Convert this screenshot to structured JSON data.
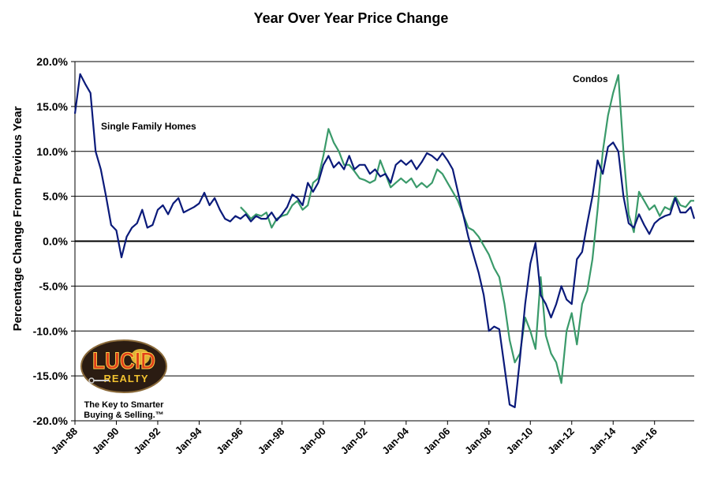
{
  "chart_data": {
    "type": "line",
    "title": "Year Over Year Price Change",
    "ylabel": "Percentage Change From Previous Year",
    "xlabel": "",
    "ylim": [
      -20,
      20
    ],
    "y_ticks": [
      "20.0%",
      "15.0%",
      "10.0%",
      "5.0%",
      "0.0%",
      "-5.0%",
      "-10.0%",
      "-15.0%",
      "-20.0%"
    ],
    "x_ticks": [
      "Jan-88",
      "Jan-90",
      "Jan-92",
      "Jan-94",
      "Jan-96",
      "Jan-98",
      "Jan-00",
      "Jan-02",
      "Jan-04",
      "Jan-06",
      "Jan-08",
      "Jan-10",
      "Jan-12",
      "Jan-14",
      "Jan-16"
    ],
    "x_range": [
      "1988-01",
      "2017-12"
    ],
    "grid": true,
    "colors": {
      "single_family": "#0a1a7a",
      "condos": "#3a9a6a"
    },
    "series": [
      {
        "name": "Single Family Homes",
        "x": [
          "1988-01",
          "1988-04",
          "1988-07",
          "1988-10",
          "1989-01",
          "1989-04",
          "1989-07",
          "1989-10",
          "1990-01",
          "1990-04",
          "1990-07",
          "1990-10",
          "1991-01",
          "1991-04",
          "1991-07",
          "1991-10",
          "1992-01",
          "1992-04",
          "1992-07",
          "1992-10",
          "1993-01",
          "1993-04",
          "1993-07",
          "1993-10",
          "1994-01",
          "1994-04",
          "1994-07",
          "1994-10",
          "1995-01",
          "1995-04",
          "1995-07",
          "1995-10",
          "1996-01",
          "1996-04",
          "1996-07",
          "1996-10",
          "1997-01",
          "1997-04",
          "1997-07",
          "1997-10",
          "1998-01",
          "1998-04",
          "1998-07",
          "1998-10",
          "1999-01",
          "1999-04",
          "1999-07",
          "1999-10",
          "2000-01",
          "2000-04",
          "2000-07",
          "2000-10",
          "2001-01",
          "2001-04",
          "2001-07",
          "2001-10",
          "2002-01",
          "2002-04",
          "2002-07",
          "2002-10",
          "2003-01",
          "2003-04",
          "2003-07",
          "2003-10",
          "2004-01",
          "2004-04",
          "2004-07",
          "2004-10",
          "2005-01",
          "2005-04",
          "2005-07",
          "2005-10",
          "2006-01",
          "2006-04",
          "2006-07",
          "2006-10",
          "2007-01",
          "2007-04",
          "2007-07",
          "2007-10",
          "2008-01",
          "2008-04",
          "2008-07",
          "2008-10",
          "2009-01",
          "2009-04",
          "2009-07",
          "2009-10",
          "2010-01",
          "2010-04",
          "2010-07",
          "2010-10",
          "2011-01",
          "2011-04",
          "2011-07",
          "2011-10",
          "2012-01",
          "2012-04",
          "2012-07",
          "2012-10",
          "2013-01",
          "2013-04",
          "2013-07",
          "2013-10",
          "2014-01",
          "2014-04",
          "2014-07",
          "2014-10",
          "2015-01",
          "2015-04",
          "2015-07",
          "2015-10",
          "2016-01",
          "2016-04",
          "2016-07",
          "2016-10",
          "2017-01",
          "2017-04",
          "2017-07",
          "2017-10",
          "2017-12"
        ],
        "values": [
          14.2,
          18.6,
          17.5,
          16.5,
          10.0,
          8.0,
          5.0,
          1.8,
          1.2,
          -1.8,
          0.5,
          1.5,
          2.0,
          3.5,
          1.5,
          1.8,
          3.5,
          4.0,
          3.0,
          4.2,
          4.8,
          3.2,
          3.5,
          3.8,
          4.2,
          5.4,
          4.0,
          4.8,
          3.5,
          2.5,
          2.2,
          2.8,
          2.5,
          3.0,
          2.2,
          2.8,
          2.5,
          2.5,
          3.2,
          2.3,
          3.0,
          3.8,
          5.2,
          4.8,
          4.0,
          6.5,
          5.5,
          6.5,
          8.5,
          9.5,
          8.2,
          8.8,
          8.0,
          9.5,
          8.0,
          8.5,
          8.5,
          7.5,
          8.0,
          7.2,
          7.5,
          6.5,
          8.5,
          9.0,
          8.5,
          9.0,
          8.0,
          8.8,
          9.8,
          9.5,
          9.0,
          9.8,
          9.0,
          8.0,
          5.5,
          3.0,
          0.5,
          -1.5,
          -3.5,
          -6.0,
          -10.0,
          -9.5,
          -9.8,
          -14.0,
          -18.2,
          -18.5,
          -13.0,
          -7.0,
          -2.5,
          -0.2,
          -6.0,
          -7.0,
          -8.5,
          -7.0,
          -5.0,
          -6.5,
          -7.0,
          -2.0,
          -1.2,
          2.0,
          5.0,
          9.0,
          7.5,
          10.5,
          11.0,
          10.0,
          5.0,
          2.0,
          1.5,
          3.0,
          1.8,
          0.8,
          2.0,
          2.5,
          2.8,
          3.0,
          4.8,
          3.2,
          3.2,
          3.8,
          2.5
        ]
      },
      {
        "name": "Condos",
        "x": [
          "1996-01",
          "1996-04",
          "1996-07",
          "1996-10",
          "1997-01",
          "1997-04",
          "1997-07",
          "1997-10",
          "1998-01",
          "1998-04",
          "1998-07",
          "1998-10",
          "1999-01",
          "1999-04",
          "1999-07",
          "1999-10",
          "2000-01",
          "2000-04",
          "2000-07",
          "2000-10",
          "2001-01",
          "2001-04",
          "2001-07",
          "2001-10",
          "2002-01",
          "2002-04",
          "2002-07",
          "2002-10",
          "2003-01",
          "2003-04",
          "2003-07",
          "2003-10",
          "2004-01",
          "2004-04",
          "2004-07",
          "2004-10",
          "2005-01",
          "2005-04",
          "2005-07",
          "2005-10",
          "2006-01",
          "2006-04",
          "2006-07",
          "2006-10",
          "2007-01",
          "2007-04",
          "2007-07",
          "2007-10",
          "2008-01",
          "2008-04",
          "2008-07",
          "2008-10",
          "2009-01",
          "2009-04",
          "2009-07",
          "2009-10",
          "2010-01",
          "2010-04",
          "2010-07",
          "2010-10",
          "2011-01",
          "2011-04",
          "2011-07",
          "2011-10",
          "2012-01",
          "2012-04",
          "2012-07",
          "2012-10",
          "2013-01",
          "2013-04",
          "2013-07",
          "2013-10",
          "2014-01",
          "2014-04",
          "2014-07",
          "2014-10",
          "2015-01",
          "2015-04",
          "2015-07",
          "2015-10",
          "2016-01",
          "2016-04",
          "2016-07",
          "2016-10",
          "2017-01",
          "2017-04",
          "2017-07",
          "2017-10",
          "2017-12"
        ],
        "values": [
          3.8,
          3.2,
          2.5,
          3.0,
          2.8,
          3.2,
          1.5,
          2.5,
          2.8,
          3.0,
          4.0,
          4.5,
          3.5,
          4.0,
          6.5,
          7.0,
          9.5,
          12.5,
          11.0,
          10.0,
          8.5,
          8.5,
          7.8,
          7.0,
          6.8,
          6.5,
          6.8,
          9.0,
          7.5,
          6.0,
          6.5,
          7.0,
          6.5,
          7.0,
          6.0,
          6.5,
          6.0,
          6.5,
          8.0,
          7.5,
          6.5,
          5.5,
          4.5,
          3.0,
          1.5,
          1.2,
          0.5,
          -0.5,
          -1.5,
          -3.0,
          -4.0,
          -7.0,
          -11.0,
          -13.5,
          -12.5,
          -8.5,
          -10.0,
          -12.0,
          -4.0,
          -10.5,
          -12.5,
          -13.5,
          -15.8,
          -10.0,
          -8.0,
          -11.5,
          -7.0,
          -5.5,
          -2.0,
          3.5,
          10.0,
          14.0,
          16.5,
          18.5,
          10.0,
          3.0,
          1.0,
          5.5,
          4.5,
          3.5,
          4.0,
          2.8,
          3.8,
          3.5,
          5.0,
          4.0,
          3.8,
          4.5,
          4.5
        ]
      }
    ],
    "annotations": [
      {
        "text": "Single Family Homes",
        "series": "Single Family Homes"
      },
      {
        "text": "Condos",
        "series": "Condos"
      }
    ]
  },
  "logo": {
    "wordmark_top": "LUCID",
    "wordmark_bottom": "REALTY",
    "tagline_line1": "The Key to Smarter",
    "tagline_line2": "Buying & Selling.™"
  }
}
